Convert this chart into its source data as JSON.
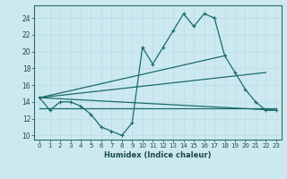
{
  "xlabel": "Humidex (Indice chaleur)",
  "xlim": [
    -0.5,
    23.5
  ],
  "ylim": [
    9.5,
    25.5
  ],
  "xticks": [
    0,
    1,
    2,
    3,
    4,
    5,
    6,
    7,
    8,
    9,
    10,
    11,
    12,
    13,
    14,
    15,
    16,
    17,
    18,
    19,
    20,
    21,
    22,
    23
  ],
  "yticks": [
    10,
    12,
    14,
    16,
    18,
    20,
    22,
    24
  ],
  "bg_color": "#cde9f0",
  "line_color": "#1a6b6b",
  "grid_color": "#b8dce8",
  "main_x": [
    0,
    1,
    2,
    3,
    4,
    5,
    6,
    7,
    8,
    9,
    10,
    11,
    12,
    13,
    14,
    15,
    16,
    17,
    18,
    19,
    20,
    21,
    22,
    23
  ],
  "main_y": [
    14.5,
    13.0,
    14.0,
    14.0,
    13.5,
    12.5,
    11.0,
    10.5,
    10.0,
    11.5,
    20.5,
    18.5,
    20.5,
    22.5,
    24.5,
    23.0,
    24.5,
    24.0,
    19.5,
    17.5,
    15.5,
    14.0,
    13.0,
    13.0
  ],
  "trend1_x": [
    0,
    23
  ],
  "trend1_y": [
    14.5,
    13.0
  ],
  "trend2_x": [
    0,
    18
  ],
  "trend2_y": [
    14.5,
    19.5
  ],
  "trend3_x": [
    0,
    22
  ],
  "trend3_y": [
    14.5,
    17.5
  ],
  "trend4_x": [
    0,
    23
  ],
  "trend4_y": [
    13.2,
    13.2
  ]
}
